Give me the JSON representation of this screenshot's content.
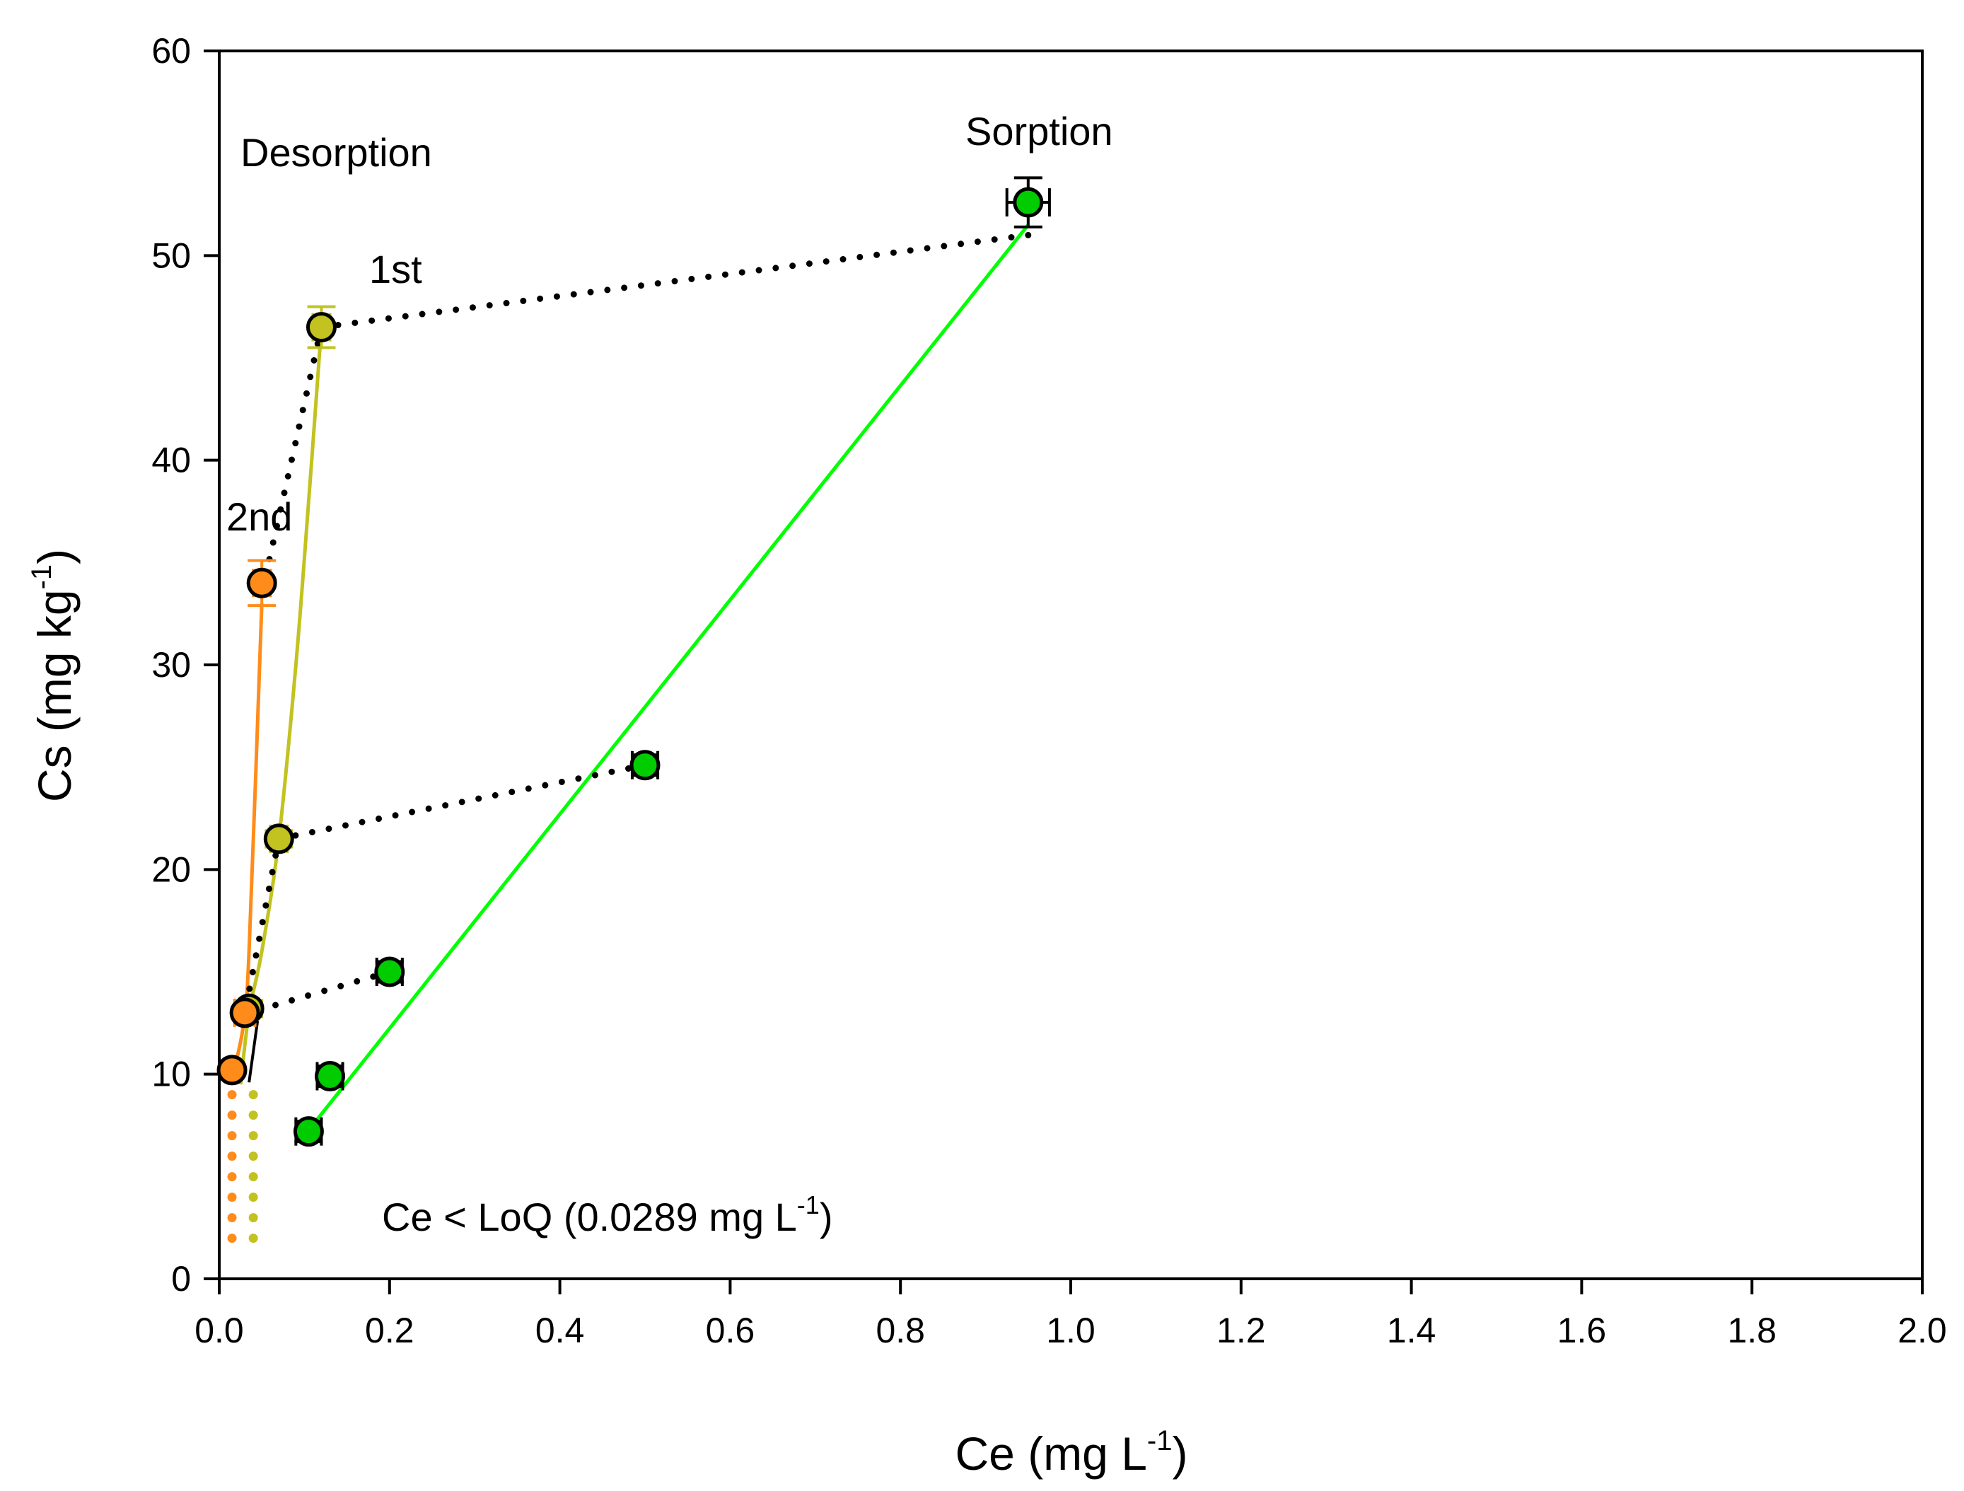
{
  "chart_data": {
    "type": "scatter",
    "title": "",
    "xlabel": "Ce (mg L-1)",
    "xlabel_main": "Ce (mg L",
    "xlabel_sup": "-1",
    "xlabel_close": ")",
    "ylabel": "Cs (mg kg-1)",
    "ylabel_main": "Cs (mg kg",
    "ylabel_sup": "-1",
    "ylabel_close": ")",
    "xlim": [
      0,
      2.0
    ],
    "ylim": [
      0,
      60
    ],
    "x_ticks": [
      0.0,
      0.2,
      0.4,
      0.6,
      0.8,
      1.0,
      1.2,
      1.4,
      1.6,
      1.8,
      2.0
    ],
    "x_tick_labels": [
      "0.0",
      "0.2",
      "0.4",
      "0.6",
      "0.8",
      "1.0",
      "1.2",
      "1.4",
      "1.6",
      "1.8",
      "2.0"
    ],
    "y_ticks": [
      0,
      10,
      20,
      30,
      40,
      50,
      60
    ],
    "y_tick_labels": [
      "0",
      "10",
      "20",
      "30",
      "40",
      "50",
      "60"
    ],
    "grid": false,
    "colors": {
      "sorption": "#00cc00",
      "sorption_line": "#00ff00",
      "desorption_1st": "#c2c220",
      "desorption_2nd": "#ff8c1a",
      "connector": "#000000"
    },
    "series": [
      {
        "name": "Sorption",
        "color": "#00cc00",
        "points": [
          {
            "x": 0.105,
            "y": 7.2,
            "xerr": 0.015,
            "yerr": 0.5
          },
          {
            "x": 0.13,
            "y": 9.9,
            "xerr": 0.015,
            "yerr": 0.5
          },
          {
            "x": 0.2,
            "y": 15.0,
            "xerr": 0.015,
            "yerr": 0.5
          },
          {
            "x": 0.5,
            "y": 25.1,
            "xerr": 0.015,
            "yerr": 0.5
          },
          {
            "x": 0.95,
            "y": 52.6,
            "xerr": 0.025,
            "yerr": 1.2
          }
        ],
        "fit_line": {
          "x": [
            0.1,
            0.95
          ],
          "y": [
            7.0,
            51.5
          ]
        }
      },
      {
        "name": "Desorption 1st",
        "color": "#c2c220",
        "points": [
          {
            "x": 0.035,
            "y": 13.2,
            "xerr": 0,
            "yerr": 0.4
          },
          {
            "x": 0.07,
            "y": 21.5,
            "xerr": 0.01,
            "yerr": 0.4
          },
          {
            "x": 0.12,
            "y": 46.5,
            "xerr": 0.01,
            "yerr": 1.0
          }
        ],
        "fit_curve": {
          "x": [
            0.025,
            0.035,
            0.05,
            0.07,
            0.09,
            0.105,
            0.12
          ],
          "y": [
            9.5,
            13.0,
            16.0,
            21.5,
            30.0,
            38.0,
            46.5
          ]
        },
        "loq_x": 0.04
      },
      {
        "name": "Desorption 2nd",
        "color": "#ff8c1a",
        "points": [
          {
            "x": 0.015,
            "y": 10.2,
            "xerr": 0,
            "yerr": 0
          },
          {
            "x": 0.03,
            "y": 13.0,
            "xerr": 0.012,
            "yerr": 0
          },
          {
            "x": 0.05,
            "y": 34.0,
            "xerr": 0.01,
            "yerr": 1.1
          }
        ],
        "fit_curve": {
          "x": [
            0.015,
            0.028,
            0.035,
            0.05
          ],
          "y": [
            9.8,
            12.3,
            16.0,
            33.0
          ]
        },
        "loq_x": 0.015
      }
    ],
    "connectors": [
      {
        "from": [
          0.95,
          51.0
        ],
        "to": [
          0.12,
          46.5
        ]
      },
      {
        "from": [
          0.12,
          46.5
        ],
        "to": [
          0.05,
          33.5
        ]
      },
      {
        "from": [
          0.5,
          25.1
        ],
        "to": [
          0.07,
          21.5
        ]
      },
      {
        "from": [
          0.07,
          21.5
        ],
        "to": [
          0.03,
          13.0
        ]
      },
      {
        "from": [
          0.2,
          15.0
        ],
        "to": [
          0.035,
          13.0
        ]
      }
    ],
    "connector_tail": {
      "from": [
        0.045,
        12.6
      ],
      "to": [
        0.035,
        9.6
      ]
    },
    "loq_ylim": [
      1.2,
      9.0
    ],
    "annotations": {
      "sorption": "Sorption",
      "desorption": "Desorption",
      "first": "1st",
      "second": "2nd",
      "loq_main": "Ce < LoQ (0.0289 mg L",
      "loq_sup": "-1",
      "loq_close": ")"
    }
  }
}
